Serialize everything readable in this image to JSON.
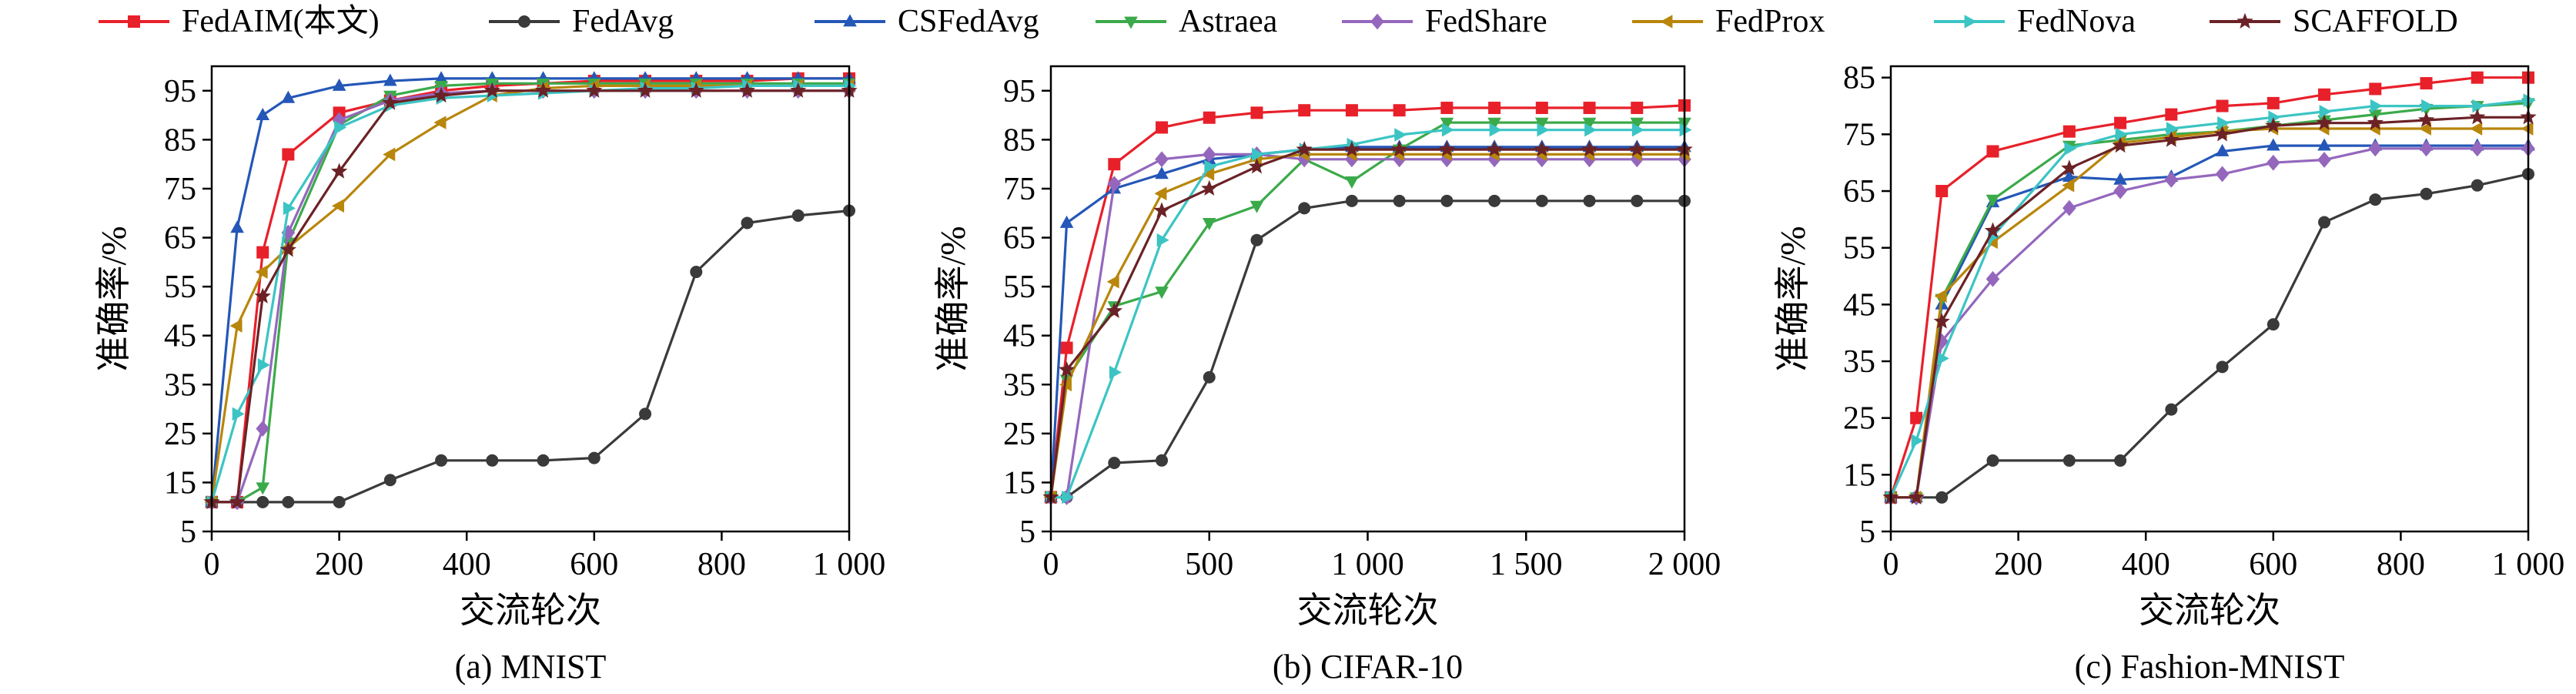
{
  "legend_entries": [
    {
      "name": "FedAIM(本文)",
      "color": "#E8202A",
      "marker": "square"
    },
    {
      "name": "FedAvg",
      "color": "#3A3A3A",
      "marker": "circle"
    },
    {
      "name": "CSFedAvg",
      "color": "#2457B7",
      "marker": "triangle-up"
    },
    {
      "name": "Astraea",
      "color": "#3BAA4A",
      "marker": "triangle-down"
    },
    {
      "name": "FedShare",
      "color": "#9467BD",
      "marker": "diamond"
    },
    {
      "name": "FedProx",
      "color": "#B8860B",
      "marker": "triangle-left"
    },
    {
      "name": "FedNova",
      "color": "#3CC4C4",
      "marker": "triangle-right"
    },
    {
      "name": "SCAFFOLD",
      "color": "#6B2226",
      "marker": "star"
    }
  ],
  "chart_data": [
    {
      "type": "line",
      "caption": "(a) MNIST",
      "xlabel": "交流轮次",
      "ylabel": "准确率/%",
      "xlim": [
        0,
        1000
      ],
      "ylim": [
        5,
        100
      ],
      "xticks": [
        0,
        200,
        400,
        600,
        800,
        1000
      ],
      "xtick_labels": [
        "0",
        "200",
        "400",
        "600",
        "800",
        "1 000"
      ],
      "yticks": [
        5,
        15,
        25,
        35,
        45,
        55,
        65,
        75,
        85,
        95
      ],
      "x": [
        0,
        40,
        80,
        120,
        200,
        280,
        360,
        440,
        520,
        600,
        680,
        760,
        840,
        920,
        1000
      ],
      "series": [
        {
          "name": "FedAIM(本文)",
          "values": [
            11,
            11,
            62,
            82,
            90.5,
            93,
            95,
            96,
            96.5,
            97,
            97,
            97,
            97,
            97.5,
            97.5
          ]
        },
        {
          "name": "FedAvg",
          "values": [
            11,
            11,
            11,
            11,
            11,
            15.5,
            19.5,
            19.5,
            19.5,
            20,
            29,
            58,
            68,
            69.5,
            70.5
          ]
        },
        {
          "name": "CSFedAvg",
          "values": [
            11,
            67,
            90,
            93.5,
            96,
            97,
            97.5,
            97.5,
            97.5,
            97.5,
            97.5,
            97.5,
            97.5,
            97.5,
            97.5
          ]
        },
        {
          "name": "Astraea",
          "values": [
            11,
            11,
            14,
            64,
            88,
            94,
            96,
            96.5,
            96.5,
            96.5,
            96.5,
            96.5,
            96.5,
            96.5,
            96.5
          ]
        },
        {
          "name": "FedShare",
          "values": [
            11,
            11,
            26,
            66,
            89,
            93,
            94.5,
            95,
            95,
            95,
            95,
            95,
            95,
            95,
            95
          ]
        },
        {
          "name": "FedProx",
          "values": [
            11,
            47,
            58,
            63,
            71.5,
            82,
            88.5,
            94,
            95.5,
            96,
            96,
            96,
            96,
            96,
            96
          ]
        },
        {
          "name": "FedNova",
          "values": [
            11,
            29,
            39,
            71,
            87.5,
            92,
            93.5,
            94,
            94.5,
            95,
            95.5,
            95.5,
            96,
            96,
            96
          ]
        },
        {
          "name": "SCAFFOLD",
          "values": [
            11,
            11,
            53,
            62.5,
            78.5,
            92.5,
            94,
            95,
            95,
            95,
            95,
            95,
            95,
            95,
            95
          ]
        }
      ]
    },
    {
      "type": "line",
      "caption": "(b) CIFAR-10",
      "xlabel": "交流轮次",
      "ylabel": "准确率/%",
      "xlim": [
        0,
        2000
      ],
      "ylim": [
        5,
        100
      ],
      "xticks": [
        0,
        500,
        1000,
        1500,
        2000
      ],
      "xtick_labels": [
        "0",
        "500",
        "1 000",
        "1 500",
        "2 000"
      ],
      "yticks": [
        5,
        15,
        25,
        35,
        45,
        55,
        65,
        75,
        85,
        95
      ],
      "x": [
        0,
        50,
        200,
        350,
        500,
        650,
        800,
        950,
        1100,
        1250,
        1400,
        1550,
        1700,
        1850,
        2000
      ],
      "series": [
        {
          "name": "FedAIM(本文)",
          "values": [
            12,
            42.5,
            80,
            87.5,
            89.5,
            90.5,
            91,
            91,
            91,
            91.5,
            91.5,
            91.5,
            91.5,
            91.5,
            92
          ]
        },
        {
          "name": "FedAvg",
          "values": [
            12,
            12,
            19,
            19.5,
            36.5,
            64.5,
            71,
            72.5,
            72.5,
            72.5,
            72.5,
            72.5,
            72.5,
            72.5,
            72.5
          ]
        },
        {
          "name": "CSFedAvg",
          "values": [
            12,
            68,
            75,
            78,
            81,
            82,
            83,
            83.5,
            83.5,
            83.5,
            83.5,
            83.5,
            83.5,
            83.5,
            83.5
          ]
        },
        {
          "name": "Astraea",
          "values": [
            12,
            36,
            51,
            54,
            68,
            71.5,
            81,
            76.5,
            83,
            88.5,
            88.5,
            88.5,
            88.5,
            88.5,
            88.5
          ]
        },
        {
          "name": "FedShare",
          "values": [
            12,
            12,
            76,
            81,
            82,
            82,
            81,
            81,
            81,
            81,
            81,
            81,
            81,
            81,
            81
          ]
        },
        {
          "name": "FedProx",
          "values": [
            12,
            35,
            56,
            74,
            78,
            81,
            82,
            82,
            82,
            82,
            82,
            82,
            82,
            82,
            82
          ]
        },
        {
          "name": "FedNova",
          "values": [
            12,
            12,
            37.5,
            64.5,
            79.5,
            82,
            83,
            84,
            86,
            87,
            87,
            87,
            87,
            87,
            87
          ]
        },
        {
          "name": "SCAFFOLD",
          "values": [
            12,
            38,
            50,
            70.5,
            75,
            79.5,
            83,
            83,
            83,
            83,
            83,
            83,
            83,
            83,
            83
          ]
        }
      ]
    },
    {
      "type": "line",
      "caption": "(c) Fashion-MNIST",
      "xlabel": "交流轮次",
      "ylabel": "准确率/%",
      "xlim": [
        0,
        1000
      ],
      "ylim": [
        5,
        87
      ],
      "xticks": [
        0,
        200,
        400,
        600,
        800,
        1000
      ],
      "xtick_labels": [
        "0",
        "200",
        "400",
        "600",
        "800",
        "1 000"
      ],
      "yticks": [
        5,
        15,
        25,
        35,
        45,
        55,
        65,
        75,
        85
      ],
      "x": [
        0,
        40,
        80,
        160,
        280,
        360,
        440,
        520,
        600,
        680,
        760,
        840,
        920,
        1000
      ],
      "series": [
        {
          "name": "FedAIM(本文)",
          "values": [
            11,
            25,
            65,
            72,
            75.5,
            77,
            78.5,
            80,
            80.5,
            82,
            83,
            84,
            85,
            85
          ]
        },
        {
          "name": "FedAvg",
          "values": [
            11,
            11,
            11,
            17.5,
            17.5,
            17.5,
            26.5,
            34,
            41.5,
            59.5,
            63.5,
            64.5,
            66,
            68
          ]
        },
        {
          "name": "CSFedAvg",
          "values": [
            11,
            11,
            45,
            63,
            67.5,
            67,
            67.5,
            72,
            73,
            73,
            73,
            73,
            73,
            73
          ]
        },
        {
          "name": "Astraea",
          "values": [
            11,
            11,
            46,
            63.5,
            73,
            74,
            75,
            75.5,
            76.5,
            77.5,
            78.5,
            79.5,
            80,
            80.5
          ]
        },
        {
          "name": "FedShare",
          "values": [
            11,
            11,
            38.5,
            49.5,
            62,
            65,
            67,
            68,
            70,
            70.5,
            72.5,
            72.5,
            72.5,
            72.5
          ]
        },
        {
          "name": "FedProx",
          "values": [
            11,
            11,
            46.5,
            56,
            66,
            73.5,
            74.5,
            75.5,
            76,
            76,
            76,
            76,
            76,
            76
          ]
        },
        {
          "name": "FedNova",
          "values": [
            11,
            21,
            35.5,
            57,
            72.5,
            75,
            76,
            77,
            78,
            79,
            80,
            80,
            80,
            81
          ]
        },
        {
          "name": "SCAFFOLD",
          "values": [
            11,
            11,
            42,
            58,
            69,
            73,
            74,
            75,
            76.5,
            77,
            77,
            77.5,
            78,
            78
          ]
        }
      ]
    }
  ]
}
